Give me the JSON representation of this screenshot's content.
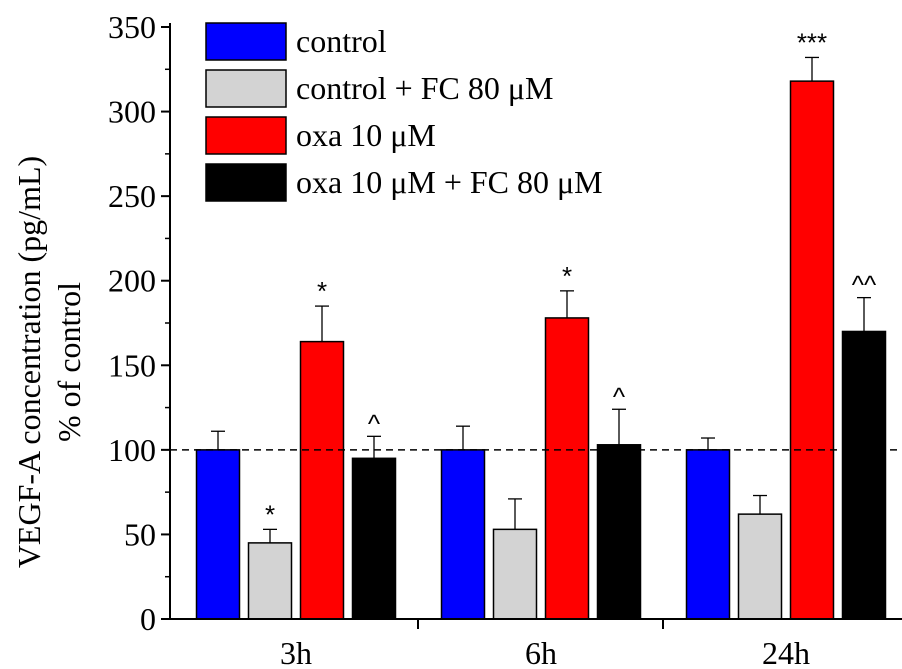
{
  "chart_data": {
    "type": "bar",
    "ylabel": "VEGF-A concentration (pg/mL)",
    "ylabel2": "% of control",
    "xlabel": "",
    "ylim": [
      0,
      350
    ],
    "yticks": [
      0,
      50,
      100,
      150,
      200,
      250,
      300,
      350
    ],
    "categories": [
      "3h",
      "6h",
      "24h"
    ],
    "reference_line": 100,
    "legend_position": "top-left",
    "series": [
      {
        "name": "control",
        "color": "#0000ff",
        "values": [
          100,
          100,
          100
        ],
        "errors": [
          11,
          14,
          7
        ],
        "labels": [
          "",
          "",
          ""
        ]
      },
      {
        "name": "control + FC 80 μM",
        "color": "#d3d3d3",
        "values": [
          45,
          53,
          62
        ],
        "errors": [
          8,
          18,
          11
        ],
        "labels": [
          "*",
          "",
          ""
        ]
      },
      {
        "name": "oxa 10 μM",
        "color": "#ff0000",
        "values": [
          164,
          178,
          318
        ],
        "errors": [
          21,
          16,
          14
        ],
        "labels": [
          "*",
          "*",
          "***"
        ]
      },
      {
        "name": "oxa 10 μM + FC 80 μM",
        "color": "#000000",
        "values": [
          95,
          103,
          170
        ],
        "errors": [
          13,
          21,
          20
        ],
        "labels": [
          "^",
          "^",
          "^^"
        ]
      }
    ]
  }
}
